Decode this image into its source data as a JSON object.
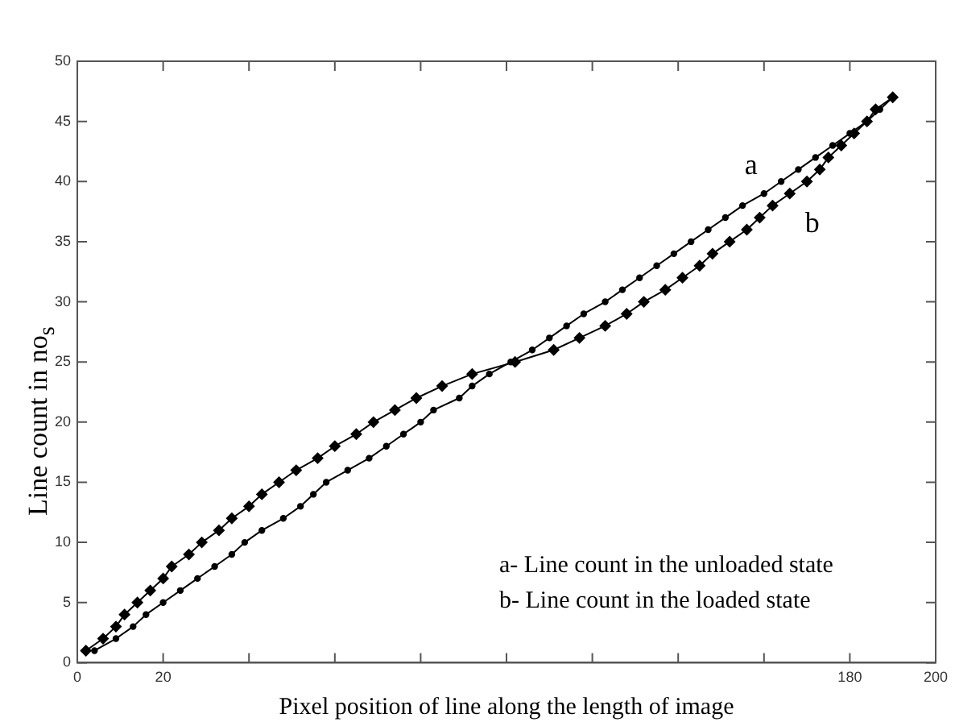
{
  "chart_data": {
    "type": "line",
    "xlabel": "Pixel position of line along the length of image",
    "ylabel": "Line count in no$_{s}$",
    "xlim": [
      0,
      200
    ],
    "ylim": [
      0,
      50
    ],
    "xticks": [
      0,
      20,
      {
        "value": 40,
        "label": null
      },
      {
        "value": 60,
        "label": null
      },
      {
        "value": 80,
        "label": null
      },
      {
        "value": 100,
        "label": null
      },
      {
        "value": 120,
        "label": null
      },
      {
        "value": 140,
        "label": null
      },
      {
        "value": 160,
        "label": null
      },
      180,
      200
    ],
    "yticks": [
      0,
      5,
      10,
      15,
      20,
      25,
      30,
      35,
      40,
      45,
      50
    ],
    "grid": false,
    "legend": false,
    "line_style": "solid",
    "annotations": [
      "a-   Line count in the unloaded state",
      "b-   Line count in the loaded state"
    ],
    "series": [
      {
        "name": "a",
        "color": "#000000",
        "marker": "circle",
        "x": [
          4,
          9,
          13,
          16,
          20,
          24,
          28,
          32,
          36,
          39,
          43,
          48,
          52,
          55,
          58,
          63,
          68,
          72,
          76,
          80,
          83,
          89,
          92,
          96,
          101,
          106,
          110,
          114,
          118,
          123,
          127,
          131,
          135,
          139,
          143,
          147,
          151,
          155,
          160,
          164,
          168,
          172,
          176,
          180,
          184,
          187,
          190
        ],
        "values": [
          1,
          2,
          3,
          4,
          5,
          6,
          7,
          8,
          9,
          10,
          11,
          12,
          13,
          14,
          15,
          16,
          17,
          18,
          19,
          20,
          21,
          22,
          23,
          24,
          25,
          26,
          27,
          28,
          29,
          30,
          31,
          32,
          33,
          34,
          35,
          36,
          37,
          38,
          39,
          40,
          41,
          42,
          43,
          44,
          45,
          46,
          47
        ]
      },
      {
        "name": "b",
        "color": "#000000",
        "marker": "diamond",
        "x": [
          2,
          6,
          9,
          11,
          14,
          17,
          20,
          22,
          26,
          29,
          33,
          36,
          40,
          43,
          47,
          51,
          56,
          60,
          65,
          69,
          74,
          79,
          85,
          92,
          102,
          111,
          117,
          123,
          128,
          132,
          137,
          141,
          145,
          148,
          152,
          156,
          159,
          162,
          166,
          170,
          173,
          175,
          178,
          181,
          184,
          186,
          190
        ],
        "values": [
          1,
          2,
          3,
          4,
          5,
          6,
          7,
          8,
          9,
          10,
          11,
          12,
          13,
          14,
          15,
          16,
          17,
          18,
          19,
          20,
          21,
          22,
          23,
          24,
          25,
          26,
          27,
          28,
          29,
          30,
          31,
          32,
          33,
          34,
          35,
          36,
          37,
          38,
          39,
          40,
          41,
          42,
          43,
          44,
          45,
          46,
          47
        ]
      }
    ]
  }
}
